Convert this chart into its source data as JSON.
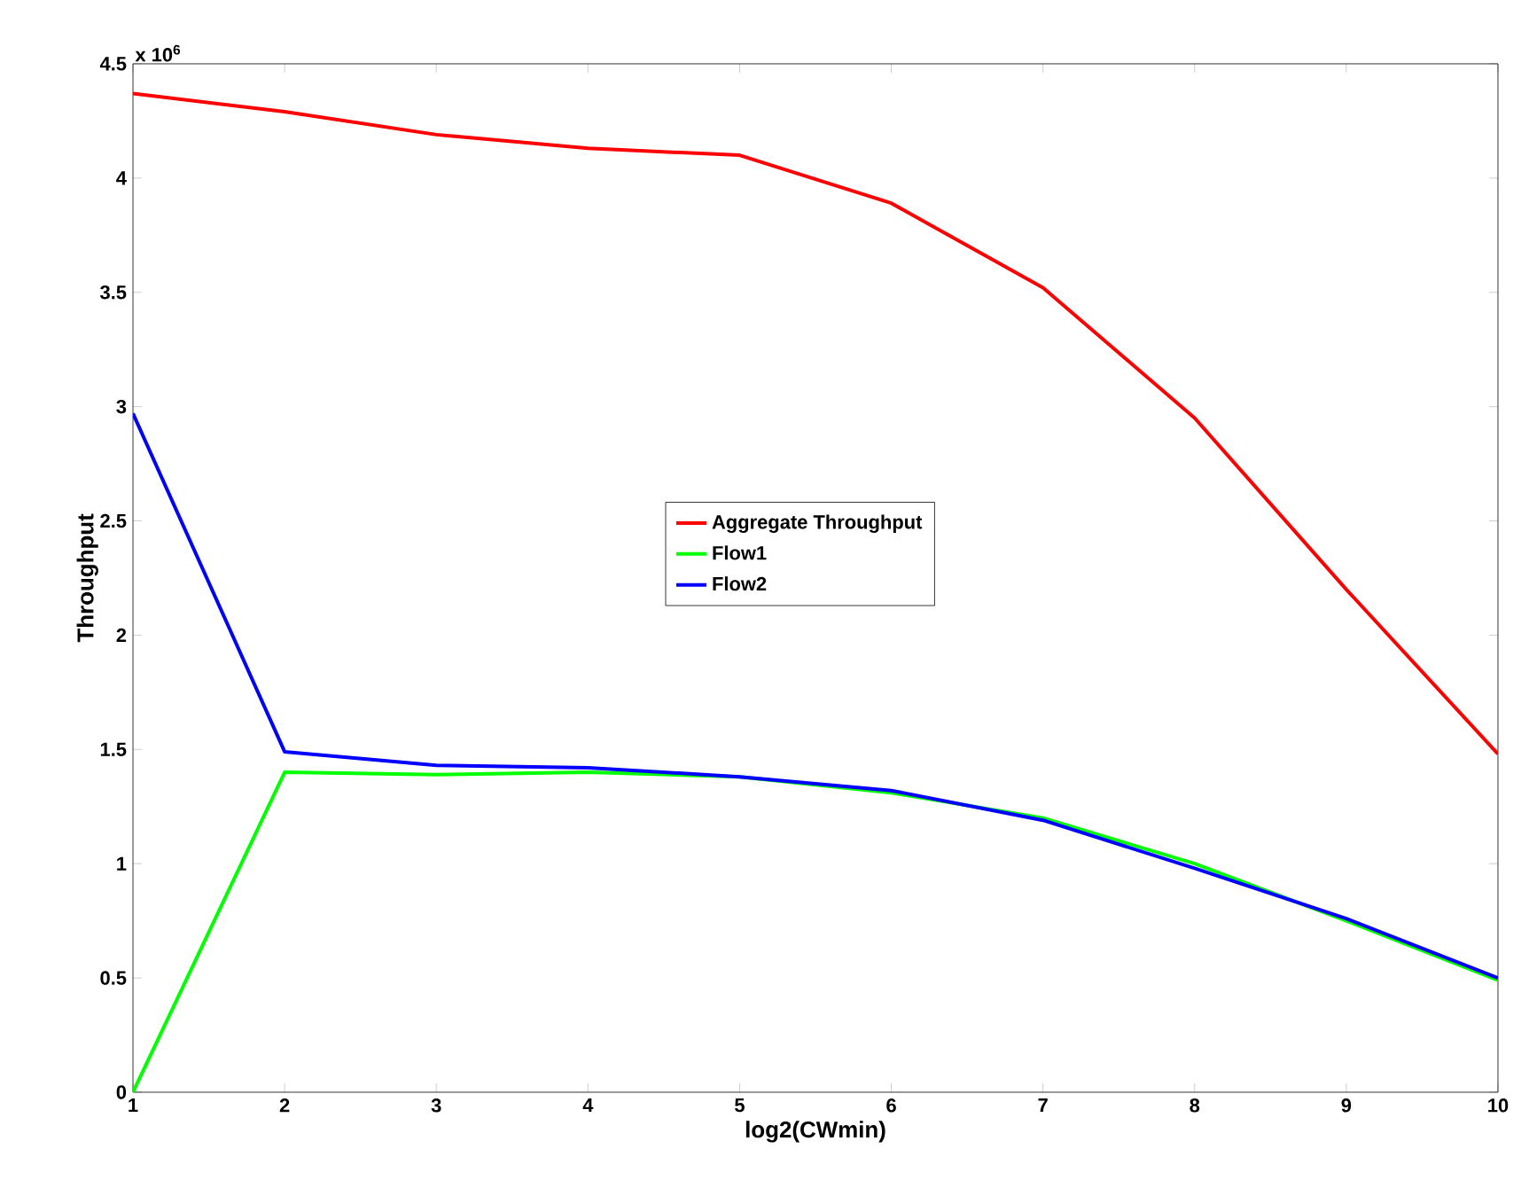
{
  "chart_data": {
    "type": "line",
    "xlabel": "log2(CWmin)",
    "ylabel": "Throughput",
    "annotations": [
      "x 10$^{6}$"
    ],
    "x": [
      1,
      2,
      3,
      4,
      5,
      6,
      7,
      8,
      9,
      10
    ],
    "series": [
      {
        "name": "Aggregate Throughput",
        "color": "#ff0000",
        "values": [
          4.37,
          4.29,
          4.19,
          4.13,
          4.1,
          3.89,
          3.52,
          2.95,
          2.2,
          1.48
        ]
      },
      {
        "name": "Flow1",
        "color": "#00ff00",
        "values": [
          0,
          1.4,
          1.39,
          1.4,
          1.38,
          1.31,
          1.2,
          1.0,
          0.75,
          0.49
        ]
      },
      {
        "name": "Flow2",
        "color": "#0000ff",
        "values": [
          2.97,
          1.49,
          1.43,
          1.42,
          1.38,
          1.32,
          1.19,
          0.98,
          0.76,
          0.5
        ]
      }
    ],
    "xlim": [
      1,
      10
    ],
    "ylim": [
      0,
      4.5
    ],
    "xticks": [
      1,
      2,
      3,
      4,
      5,
      6,
      7,
      8,
      9,
      10
    ],
    "yticks": [
      0,
      0.5,
      1,
      1.5,
      2,
      2.5,
      3,
      3.5,
      4,
      4.5
    ],
    "legend": "center",
    "grid": false,
    "marker": "none",
    "line_style": "solid"
  }
}
